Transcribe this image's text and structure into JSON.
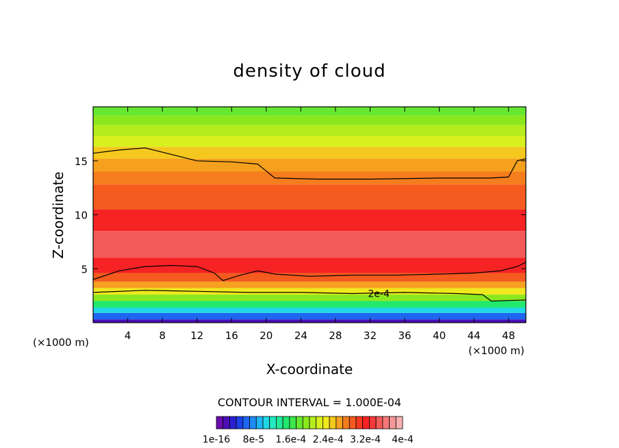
{
  "chart_data": {
    "type": "heatmap",
    "title": "density of cloud",
    "xlabel": "X-coordinate",
    "ylabel": "Z-coordinate",
    "x_unit": "(×1000 m)",
    "x_unit_right": "(×1000 m)",
    "xlim": [
      0,
      50
    ],
    "ylim": [
      0,
      20
    ],
    "xticks": [
      4,
      8,
      12,
      16,
      20,
      24,
      28,
      32,
      36,
      40,
      44,
      48
    ],
    "yticks": [
      5,
      10,
      15
    ],
    "contour_label": "2e-4",
    "contour_interval_text": "CONTOUR INTERVAL = 1.000E-04",
    "colorbar_labels": [
      "1e-16",
      "8e-5",
      "1.6e-4",
      "2.4e-4",
      "3.2e-4",
      "4e-4"
    ],
    "colorbar_colors": [
      "#6a0dad",
      "#4b0fb8",
      "#2a1fd0",
      "#1a40e6",
      "#1f66f0",
      "#1f8cf5",
      "#1fb4f5",
      "#1fd8e6",
      "#23e8c0",
      "#22e898",
      "#22e86e",
      "#3ce84a",
      "#66e830",
      "#8ce81e",
      "#b4ec1e",
      "#d8f01e",
      "#f0e81e",
      "#f5c81e",
      "#f5a01e",
      "#f57d1e",
      "#f55a1e",
      "#f5391e",
      "#f52323",
      "#f53a3a",
      "#f55a5a",
      "#f57878",
      "#f59696",
      "#f5b0b0"
    ],
    "field_bands": [
      {
        "z": 0.3,
        "c": "#4b0fb8"
      },
      {
        "z": 0.9,
        "c": "#1f66f0"
      },
      {
        "z": 1.4,
        "c": "#1fd8e6"
      },
      {
        "z": 2.0,
        "c": "#22e86e"
      },
      {
        "z": 2.6,
        "c": "#8ce81e"
      },
      {
        "z": 3.2,
        "c": "#f0e81e"
      },
      {
        "z": 3.8,
        "c": "#f5a01e"
      },
      {
        "z": 4.6,
        "c": "#f55a1e"
      },
      {
        "z": 6.0,
        "c": "#f52323"
      },
      {
        "z": 8.5,
        "c": "#f55a5a"
      },
      {
        "z": 10.5,
        "c": "#f52323"
      },
      {
        "z": 12.8,
        "c": "#f55a1e"
      },
      {
        "z": 14.0,
        "c": "#f57d1e"
      },
      {
        "z": 15.2,
        "c": "#f5a01e"
      },
      {
        "z": 16.3,
        "c": "#f5c81e"
      },
      {
        "z": 17.3,
        "c": "#d8f01e"
      },
      {
        "z": 18.3,
        "c": "#b4ec1e"
      },
      {
        "z": 19.2,
        "c": "#8ce81e"
      },
      {
        "z": 20.0,
        "c": "#66e830"
      }
    ],
    "contour_lines": [
      [
        [
          0,
          15.7
        ],
        [
          3,
          16.0
        ],
        [
          6,
          16.2
        ],
        [
          9,
          15.6
        ],
        [
          12,
          15.0
        ],
        [
          16,
          14.9
        ],
        [
          19,
          14.7
        ],
        [
          21,
          13.4
        ],
        [
          26,
          13.3
        ],
        [
          32,
          13.3
        ],
        [
          40,
          13.4
        ],
        [
          46,
          13.4
        ],
        [
          48,
          13.5
        ],
        [
          49,
          15.0
        ],
        [
          50,
          15.2
        ]
      ],
      [
        [
          0,
          4.0
        ],
        [
          3,
          4.8
        ],
        [
          6,
          5.2
        ],
        [
          9,
          5.3
        ],
        [
          12,
          5.2
        ],
        [
          14,
          4.6
        ],
        [
          15,
          3.9
        ],
        [
          17,
          4.4
        ],
        [
          19,
          4.8
        ],
        [
          21,
          4.5
        ],
        [
          25,
          4.3
        ],
        [
          30,
          4.4
        ],
        [
          35,
          4.4
        ],
        [
          40,
          4.5
        ],
        [
          44,
          4.6
        ],
        [
          47,
          4.8
        ],
        [
          49,
          5.2
        ],
        [
          50,
          5.6
        ]
      ],
      [
        [
          0,
          2.8
        ],
        [
          6,
          3.0
        ],
        [
          12,
          2.9
        ],
        [
          18,
          2.8
        ],
        [
          24,
          2.8
        ],
        [
          30,
          2.7
        ],
        [
          36,
          2.8
        ],
        [
          42,
          2.7
        ],
        [
          45,
          2.6
        ],
        [
          46,
          2.0
        ],
        [
          50,
          2.1
        ]
      ]
    ]
  }
}
